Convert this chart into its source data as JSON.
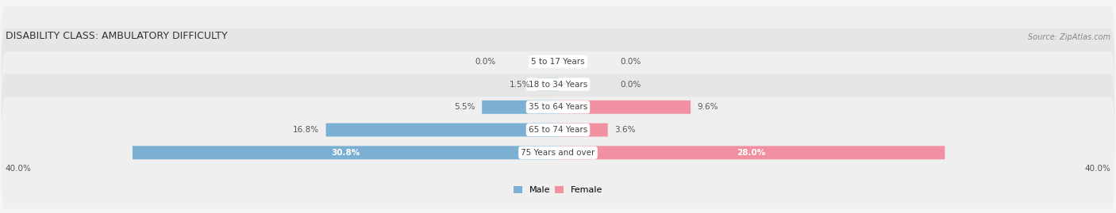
{
  "title": "DISABILITY CLASS: AMBULATORY DIFFICULTY",
  "source": "Source: ZipAtlas.com",
  "categories": [
    "5 to 17 Years",
    "18 to 34 Years",
    "35 to 64 Years",
    "65 to 74 Years",
    "75 Years and over"
  ],
  "male_values": [
    0.0,
    1.5,
    5.5,
    16.8,
    30.8
  ],
  "female_values": [
    0.0,
    0.0,
    9.6,
    3.6,
    28.0
  ],
  "max_val": 40.0,
  "male_color": "#7bafd4",
  "female_color": "#f090a0",
  "row_bg_colors": [
    "#efefef",
    "#e6e6e6",
    "#efefef",
    "#e6e6e6",
    "#efefef"
  ],
  "label_color": "#555555",
  "title_color": "#333333",
  "axis_label_color": "#555555",
  "center_label_bg": "#ffffff",
  "center_label_color": "#444444",
  "fig_bg": "#f5f5f5"
}
